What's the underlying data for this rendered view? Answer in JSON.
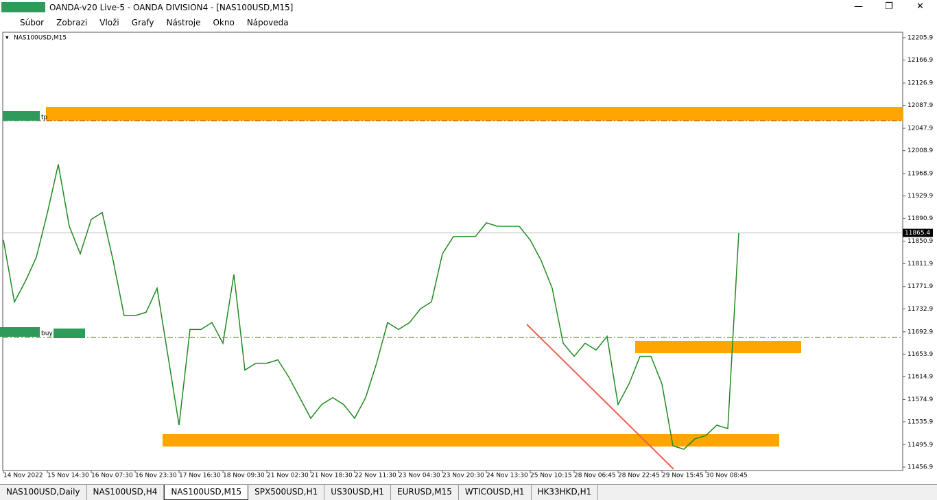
{
  "window": {
    "title": "OANDA-v20 Live-5 - OANDA DIVISION4 - [NAS100USD,M15]"
  },
  "menu": [
    "Súbor",
    "Zobrazi",
    "Vloži",
    "Grafy",
    "Nástroje",
    "Okno",
    "Nápoveda"
  ],
  "chart_data": {
    "type": "line",
    "title": "NAS100USD,M15",
    "categories": [
      "14 Nov 2022",
      null,
      null,
      null,
      "15 Nov 14:30",
      null,
      null,
      null,
      "16 Nov 07:30",
      null,
      null,
      null,
      "16 Nov 23:30",
      null,
      null,
      null,
      "17 Nov 16:30",
      null,
      null,
      null,
      "18 Nov 09:30",
      null,
      null,
      null,
      "21 Nov 02:30",
      null,
      null,
      null,
      "21 Nov 18:30",
      null,
      null,
      null,
      "22 Nov 11:30",
      null,
      null,
      null,
      "23 Nov 04:30",
      null,
      null,
      null,
      "23 Nov 20:30",
      null,
      null,
      null,
      "24 Nov 13:30",
      null,
      null,
      null,
      "25 Nov 10:15",
      null,
      null,
      null,
      "28 Nov 06:45",
      null,
      null,
      null,
      "28 Nov 22:45",
      null,
      null,
      null,
      "29 Nov 15:45",
      null,
      null,
      null,
      "30 Nov 08:45",
      null,
      null,
      null
    ],
    "series": [
      {
        "name": "NAS100USD",
        "color": "#1f8a1f",
        "values": [
          11853,
          11745,
          11781,
          11823,
          11900,
          11985,
          11877,
          11829,
          11889,
          11901,
          11817,
          11721,
          11721,
          11727,
          11769,
          11650,
          11530,
          11697,
          11697,
          11709,
          11673,
          11793,
          11626,
          11638,
          11638,
          11644,
          11614,
          11578,
          11542,
          11566,
          11578,
          11566,
          11542,
          11578,
          11638,
          11709,
          11697,
          11709,
          11733,
          11745,
          11829,
          11859,
          11859,
          11859,
          11883,
          11877,
          11877,
          11877,
          11853,
          11817,
          11769,
          11673,
          11650,
          11673,
          11661,
          11685,
          11566,
          11602,
          11650,
          11650,
          11602,
          11494,
          11488,
          11506,
          11512,
          11530,
          11524,
          11865
        ]
      }
    ],
    "ylim": [
      11456.9,
      12205.9
    ],
    "yticks": [
      11456.9,
      11495.9,
      11535.9,
      11574.9,
      11614.9,
      11653.9,
      11692.9,
      11732.9,
      11771.9,
      11811.9,
      11850.9,
      11890.9,
      11929.9,
      11968.9,
      12008.9,
      12047.9,
      12087.9,
      12126.9,
      12166.9,
      12205.9
    ],
    "current_price": 11865.4,
    "annotations": [
      "tp",
      "buy"
    ]
  },
  "tabs": [
    "NAS100USD,Daily",
    "NAS100USD,H4",
    "NAS100USD,M15",
    "SPX500USD,H1",
    "US30USD,H1",
    "EURUSD,M15",
    "WTICOUSD,H1",
    "HK33HKD,H1"
  ]
}
